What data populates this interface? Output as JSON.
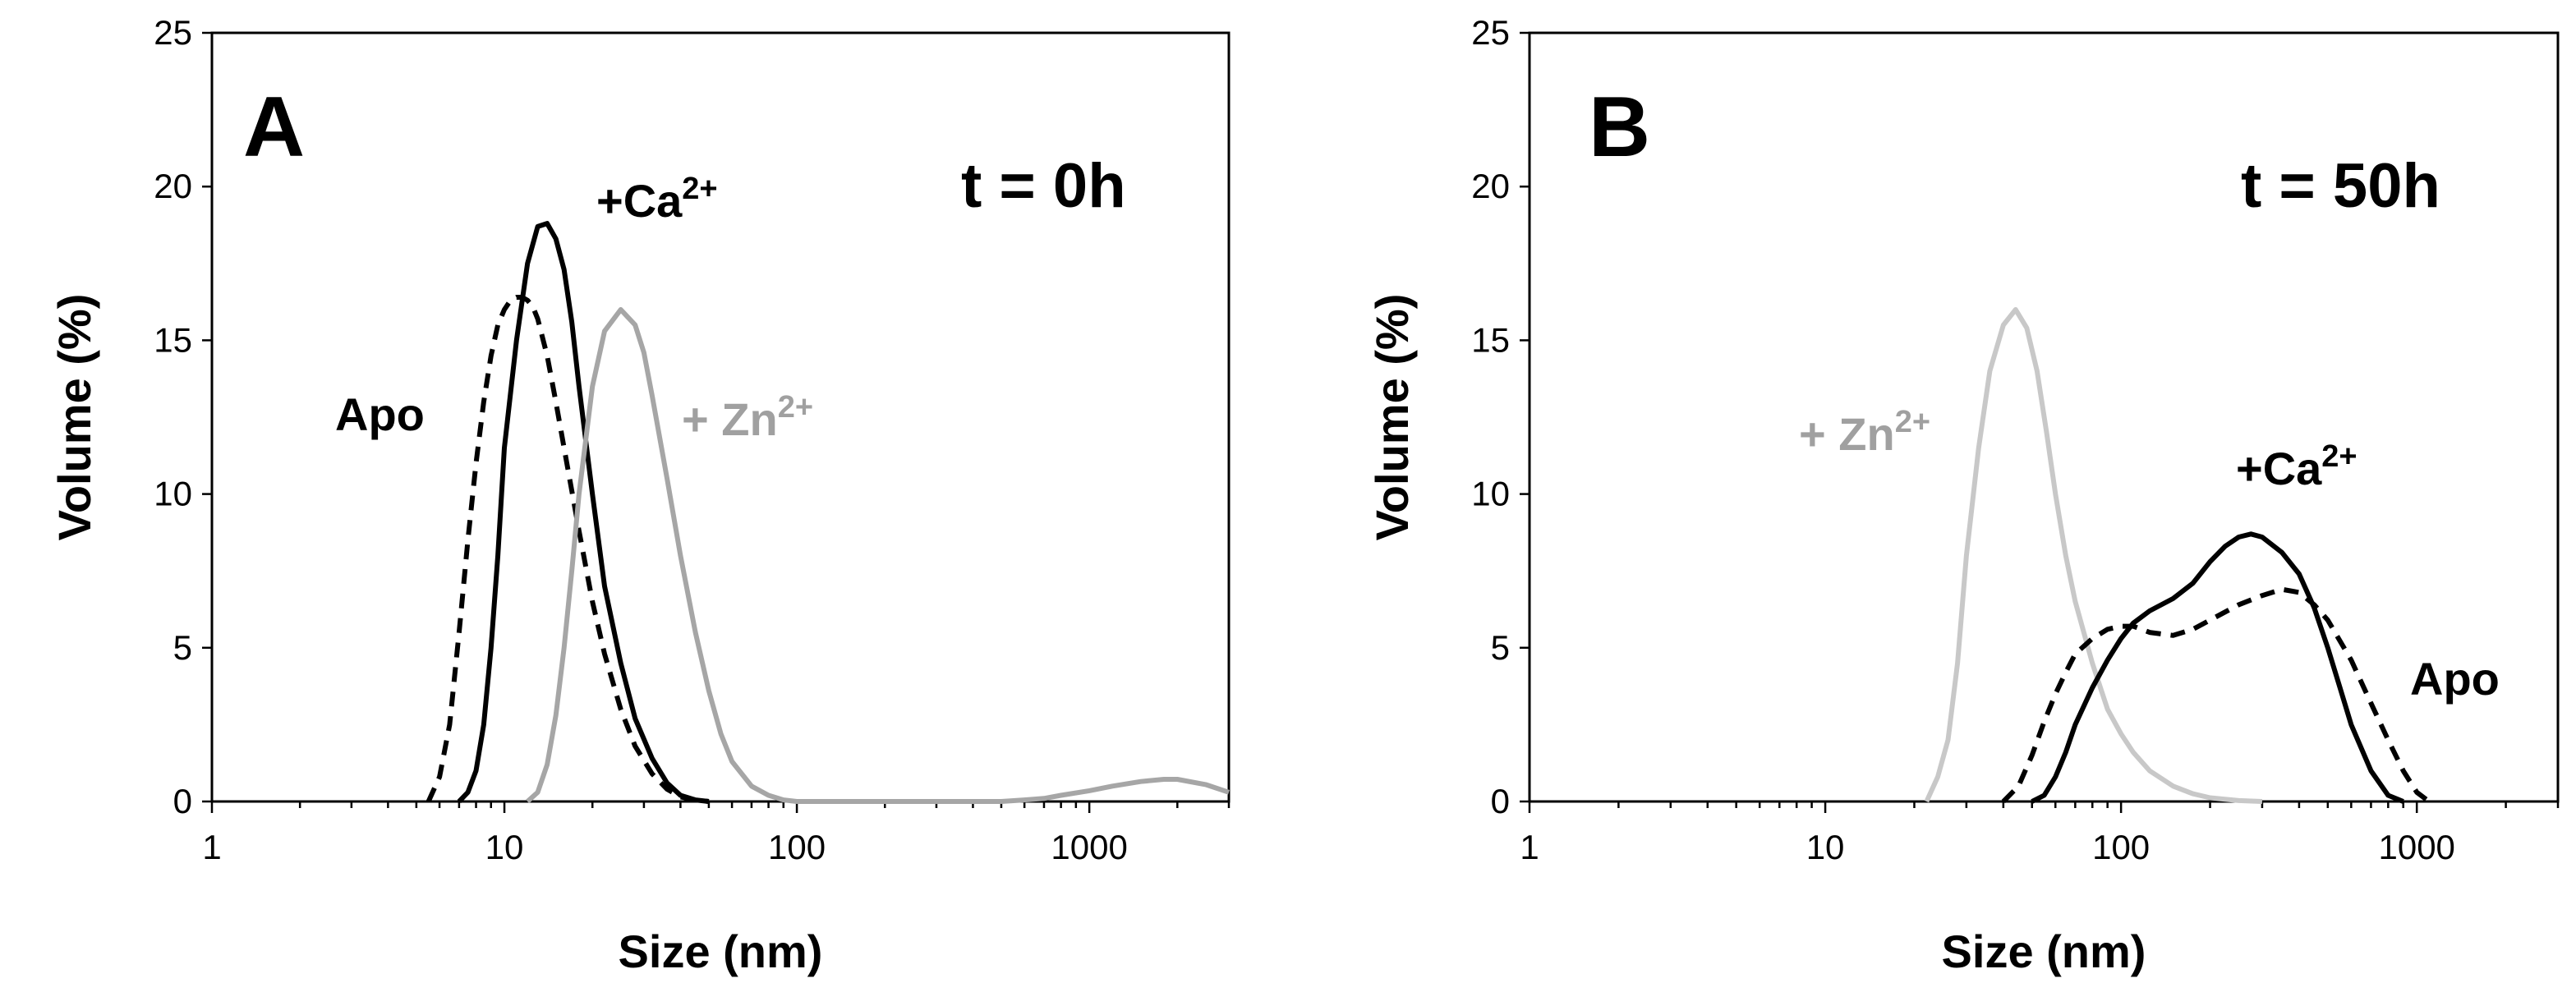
{
  "chart_data": [
    {
      "type": "line",
      "panel_label": "A",
      "annotation": "t = 0h",
      "xlabel": "Size (nm)",
      "ylabel": "Volume (%)",
      "xscale": "log",
      "xlim": [
        1,
        3000
      ],
      "ylim": [
        0,
        25
      ],
      "xticks": [
        "1",
        "10",
        "100",
        "1000"
      ],
      "yticks": [
        "0",
        "5",
        "10",
        "15",
        "20",
        "25"
      ],
      "grid": false,
      "legend": "none (inline labels)",
      "series": [
        {
          "name": "Apo",
          "color": "#000000",
          "dash": "dashed",
          "x": [
            5.5,
            6,
            6.5,
            7,
            7.5,
            8,
            8.5,
            9,
            9.5,
            10,
            10.5,
            11,
            11.5,
            12,
            12.5,
            13,
            14,
            15,
            16,
            18,
            20,
            22,
            25,
            28,
            32,
            36,
            40,
            45,
            50
          ],
          "y": [
            0,
            0.8,
            2.5,
            5.5,
            8.5,
            11,
            13,
            14.5,
            15.5,
            16,
            16.3,
            16.4,
            16.4,
            16.3,
            16.1,
            15.7,
            14.5,
            13,
            11.5,
            8.8,
            6.5,
            4.8,
            3,
            1.8,
            0.9,
            0.4,
            0.15,
            0.05,
            0
          ]
        },
        {
          "name": "+Ca²⁺",
          "color": "#000000",
          "dash": "solid",
          "x": [
            7,
            7.5,
            8,
            8.5,
            9,
            9.5,
            10,
            11,
            12,
            13,
            14,
            15,
            16,
            17,
            18,
            20,
            22,
            25,
            28,
            32,
            36,
            40,
            45,
            50
          ],
          "y": [
            0,
            0.3,
            1,
            2.5,
            5,
            8,
            11.5,
            15,
            17.5,
            18.7,
            18.8,
            18.3,
            17.3,
            15.6,
            13.5,
            10,
            7,
            4.5,
            2.7,
            1.4,
            0.6,
            0.2,
            0.05,
            0
          ]
        },
        {
          "name": "+ Zn²⁺",
          "color": "#a6a6a6",
          "dash": "solid",
          "x": [
            12,
            13,
            14,
            15,
            16,
            17,
            18,
            20,
            22,
            25,
            28,
            30,
            32,
            36,
            40,
            45,
            50,
            55,
            60,
            70,
            80,
            90,
            100,
            500,
            600,
            700,
            800,
            1000,
            1200,
            1500,
            1800,
            2000,
            2500,
            3000
          ],
          "y": [
            0,
            0.3,
            1.2,
            2.8,
            5,
            7.5,
            10,
            13.5,
            15.3,
            16,
            15.5,
            14.6,
            13.2,
            10.5,
            8,
            5.5,
            3.6,
            2.2,
            1.3,
            0.5,
            0.2,
            0.05,
            0,
            0,
            0.05,
            0.1,
            0.2,
            0.35,
            0.5,
            0.65,
            0.72,
            0.72,
            0.55,
            0.3
          ]
        }
      ]
    },
    {
      "type": "line",
      "panel_label": "B",
      "annotation": "t = 50h",
      "xlabel": "Size (nm)",
      "ylabel": "Volume (%)",
      "xscale": "log",
      "xlim": [
        1,
        3000
      ],
      "ylim": [
        0,
        25
      ],
      "xticks": [
        "1",
        "10",
        "100",
        "1000"
      ],
      "yticks": [
        "0",
        "5",
        "10",
        "15",
        "20",
        "25"
      ],
      "grid": false,
      "legend": "none (inline labels)",
      "series": [
        {
          "name": "+ Zn²⁺",
          "color": "#c8c8c8",
          "dash": "solid",
          "x": [
            22,
            24,
            26,
            28,
            30,
            33,
            36,
            40,
            44,
            48,
            52,
            56,
            60,
            65,
            70,
            80,
            90,
            100,
            110,
            125,
            150,
            175,
            200,
            250,
            300
          ],
          "y": [
            0,
            0.8,
            2,
            4.5,
            8,
            11.5,
            14,
            15.5,
            16,
            15.4,
            14,
            12,
            10,
            8,
            6.5,
            4.5,
            3,
            2.2,
            1.6,
            1,
            0.5,
            0.25,
            0.12,
            0.03,
            0
          ]
        },
        {
          "name": "+Ca²⁺",
          "color": "#000000",
          "dash": "solid",
          "x": [
            50,
            55,
            60,
            65,
            70,
            80,
            90,
            100,
            110,
            125,
            150,
            175,
            200,
            225,
            250,
            275,
            300,
            350,
            400,
            450,
            500,
            550,
            600,
            700,
            800,
            900
          ],
          "y": [
            0,
            0.2,
            0.8,
            1.6,
            2.5,
            3.7,
            4.6,
            5.3,
            5.8,
            6.2,
            6.6,
            7.1,
            7.8,
            8.3,
            8.6,
            8.7,
            8.6,
            8.1,
            7.4,
            6.3,
            5,
            3.7,
            2.5,
            1,
            0.2,
            0
          ]
        },
        {
          "name": "Apo",
          "color": "#000000",
          "dash": "dashed",
          "x": [
            40,
            45,
            50,
            55,
            60,
            65,
            70,
            80,
            90,
            100,
            110,
            125,
            150,
            175,
            200,
            250,
            300,
            350,
            400,
            450,
            500,
            600,
            700,
            800,
            900,
            1000,
            1100
          ],
          "y": [
            0,
            0.5,
            1.5,
            2.6,
            3.5,
            4.2,
            4.8,
            5.3,
            5.6,
            5.7,
            5.7,
            5.5,
            5.4,
            5.6,
            5.9,
            6.4,
            6.7,
            6.9,
            6.8,
            6.4,
            5.9,
            4.6,
            3.2,
            2,
            1,
            0.3,
            0
          ]
        }
      ]
    }
  ]
}
